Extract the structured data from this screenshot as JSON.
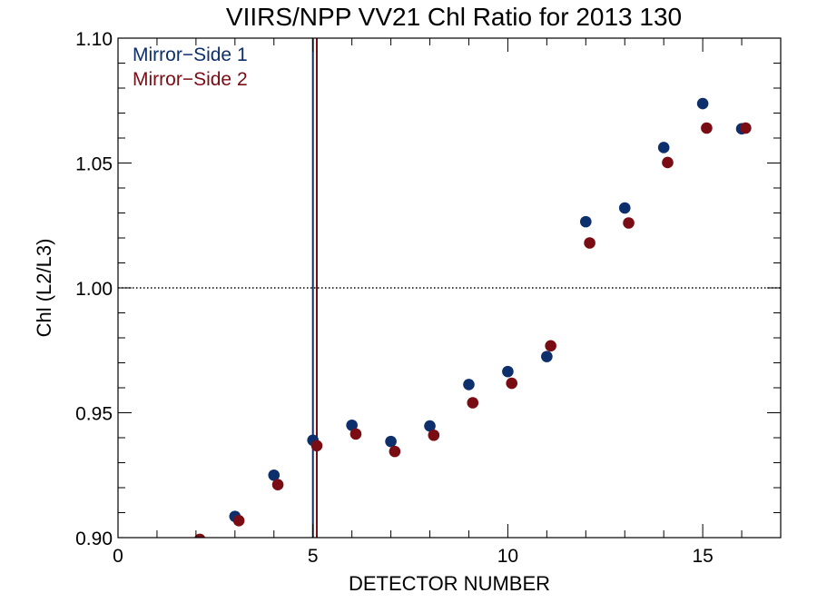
{
  "chart_data": {
    "type": "scatter",
    "title": "VIIRS/NPP VV21 Chl Ratio for 2013 130",
    "xlabel": "DETECTOR NUMBER",
    "ylabel": "Chl (L2/L3)",
    "xlim": [
      0,
      17
    ],
    "ylim": [
      0.9,
      1.1
    ],
    "xticks": [
      0,
      5,
      10,
      15
    ],
    "xtick_labels": [
      "0",
      "5",
      "10",
      "15"
    ],
    "yticks": [
      0.9,
      0.95,
      1.0,
      1.05,
      1.1
    ],
    "ytick_labels": [
      "0.90",
      "0.95",
      "1.00",
      "1.05",
      "1.10"
    ],
    "grid": false,
    "legend_position": "top-left",
    "reference_line": {
      "y": 1.0,
      "style": "dotted"
    },
    "series": [
      {
        "name": "Mirror−Side 1",
        "color": "#0d2f6b",
        "vline_x": 5.0,
        "points": [
          {
            "x": 3,
            "y": 0.9085
          },
          {
            "x": 4,
            "y": 0.925
          },
          {
            "x": 5,
            "y": 0.939
          },
          {
            "x": 6,
            "y": 0.945
          },
          {
            "x": 7,
            "y": 0.9385
          },
          {
            "x": 8,
            "y": 0.9447
          },
          {
            "x": 9,
            "y": 0.9613
          },
          {
            "x": 10,
            "y": 0.9665
          },
          {
            "x": 11,
            "y": 0.9725
          },
          {
            "x": 12,
            "y": 1.0265
          },
          {
            "x": 13,
            "y": 1.032
          },
          {
            "x": 14,
            "y": 1.0562
          },
          {
            "x": 15,
            "y": 1.0738
          },
          {
            "x": 16,
            "y": 1.0637
          }
        ]
      },
      {
        "name": "Mirror−Side 2",
        "color": "#7a0c14",
        "vline_x": 5.1,
        "points": [
          {
            "x": 2.1,
            "y": 0.8993
          },
          {
            "x": 3.1,
            "y": 0.9068
          },
          {
            "x": 4.1,
            "y": 0.9212
          },
          {
            "x": 5.1,
            "y": 0.9368
          },
          {
            "x": 6.1,
            "y": 0.9415
          },
          {
            "x": 7.1,
            "y": 0.9345
          },
          {
            "x": 8.1,
            "y": 0.941
          },
          {
            "x": 9.1,
            "y": 0.954
          },
          {
            "x": 10.1,
            "y": 0.9618
          },
          {
            "x": 11.1,
            "y": 0.9768
          },
          {
            "x": 12.1,
            "y": 1.018
          },
          {
            "x": 13.1,
            "y": 1.026
          },
          {
            "x": 14.1,
            "y": 1.0502
          },
          {
            "x": 15.1,
            "y": 1.064
          },
          {
            "x": 16.1,
            "y": 1.064
          }
        ]
      }
    ]
  }
}
